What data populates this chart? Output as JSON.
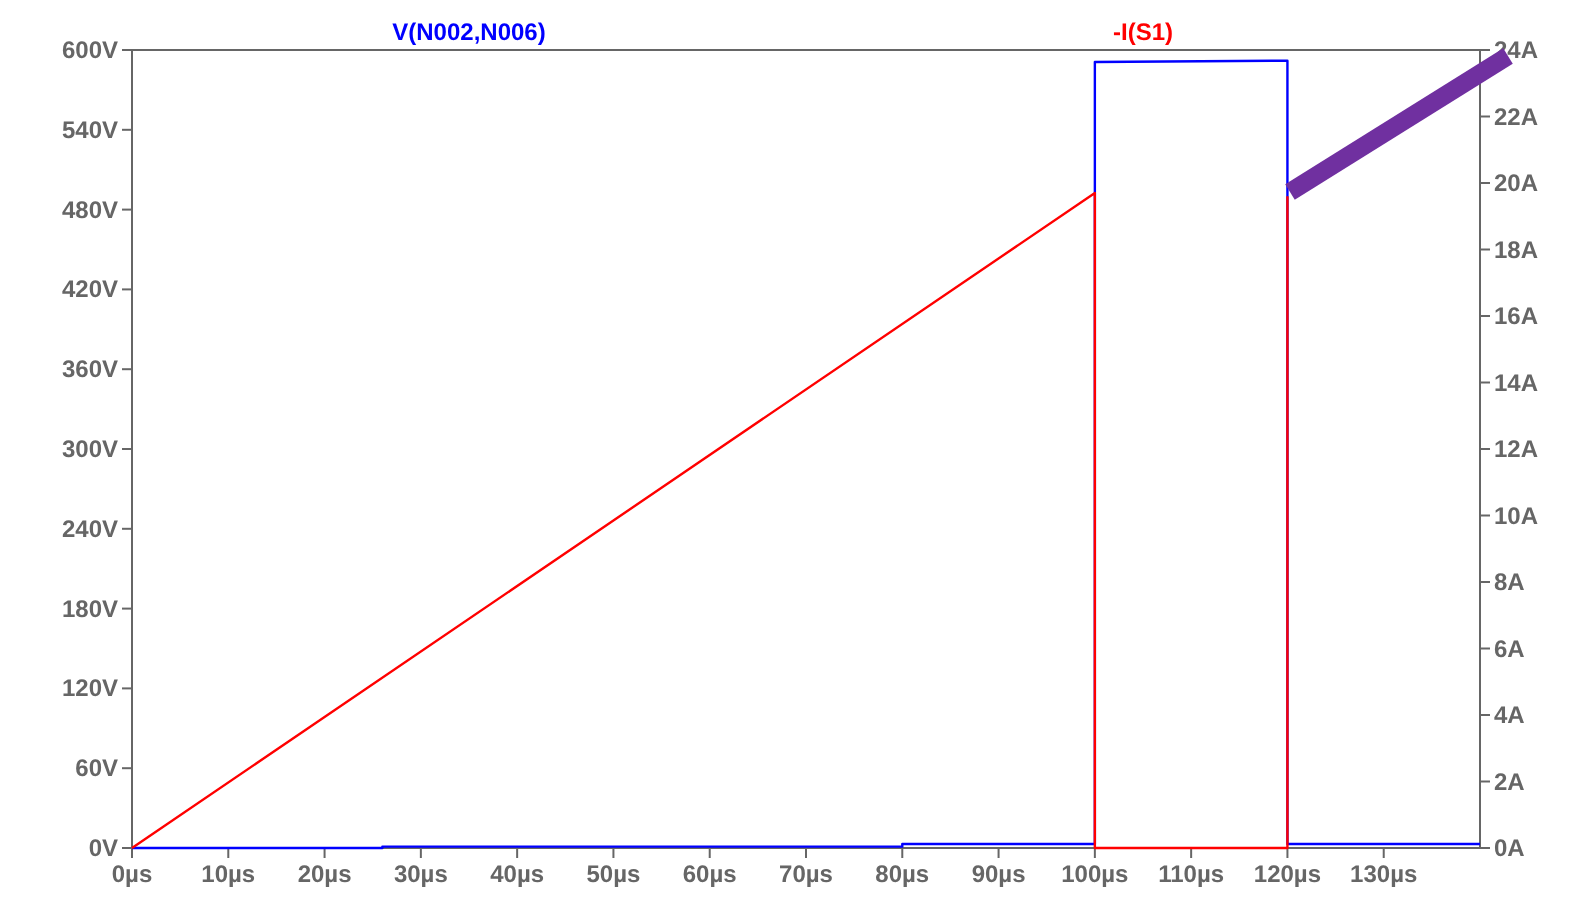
{
  "chart_data": {
    "type": "line",
    "legend": "top",
    "marker": "none",
    "line_style": "solid",
    "grid": false,
    "xlim": [
      0,
      140
    ],
    "xticks": [
      {
        "value": 0,
        "label": "0µs"
      },
      {
        "value": 10,
        "label": "10µs"
      },
      {
        "value": 20,
        "label": "20µs"
      },
      {
        "value": 30,
        "label": "30µs"
      },
      {
        "value": 40,
        "label": "40µs"
      },
      {
        "value": 50,
        "label": "50µs"
      },
      {
        "value": 60,
        "label": "60µs"
      },
      {
        "value": 70,
        "label": "70µs"
      },
      {
        "value": 80,
        "label": "80µs"
      },
      {
        "value": 90,
        "label": "90µs"
      },
      {
        "value": 100,
        "label": "100µs"
      },
      {
        "value": 110,
        "label": "110µs"
      },
      {
        "value": 120,
        "label": "120µs"
      },
      {
        "value": 130,
        "label": "130µs"
      }
    ],
    "ylim": [
      0,
      600
    ],
    "yticks": [
      {
        "value": 0,
        "label": "0V"
      },
      {
        "value": 60,
        "label": "60V"
      },
      {
        "value": 120,
        "label": "120V"
      },
      {
        "value": 180,
        "label": "180V"
      },
      {
        "value": 240,
        "label": "240V"
      },
      {
        "value": 300,
        "label": "300V"
      },
      {
        "value": 360,
        "label": "360V"
      },
      {
        "value": 420,
        "label": "420V"
      },
      {
        "value": 480,
        "label": "480V"
      },
      {
        "value": 540,
        "label": "540V"
      },
      {
        "value": 600,
        "label": "600V"
      }
    ],
    "y2lim": [
      0,
      24
    ],
    "y2ticks": [
      {
        "value": 0,
        "label": "0A"
      },
      {
        "value": 2,
        "label": "2A"
      },
      {
        "value": 4,
        "label": "4A"
      },
      {
        "value": 6,
        "label": "6A"
      },
      {
        "value": 8,
        "label": "8A"
      },
      {
        "value": 10,
        "label": "10A"
      },
      {
        "value": 12,
        "label": "12A"
      },
      {
        "value": 14,
        "label": "14A"
      },
      {
        "value": 16,
        "label": "16A"
      },
      {
        "value": 18,
        "label": "18A"
      },
      {
        "value": 20,
        "label": "20A"
      },
      {
        "value": 22,
        "label": "22A"
      },
      {
        "value": 24,
        "label": "24A"
      }
    ],
    "series": [
      {
        "name": "V(N002,N006)",
        "color": "#0000ff",
        "x": [
          0,
          26,
          26,
          80,
          80,
          100,
          100,
          120,
          120,
          140
        ],
        "values": [
          0,
          0,
          1,
          1,
          3,
          3,
          591,
          592,
          3,
          3
        ]
      },
      {
        "name": "-I(S1)",
        "color": "#ff0000",
        "axis": "y2",
        "x": [
          0,
          100,
          100,
          120,
          120
        ],
        "values": [
          0,
          19.7,
          0,
          0,
          19.6
        ]
      }
    ]
  }
}
